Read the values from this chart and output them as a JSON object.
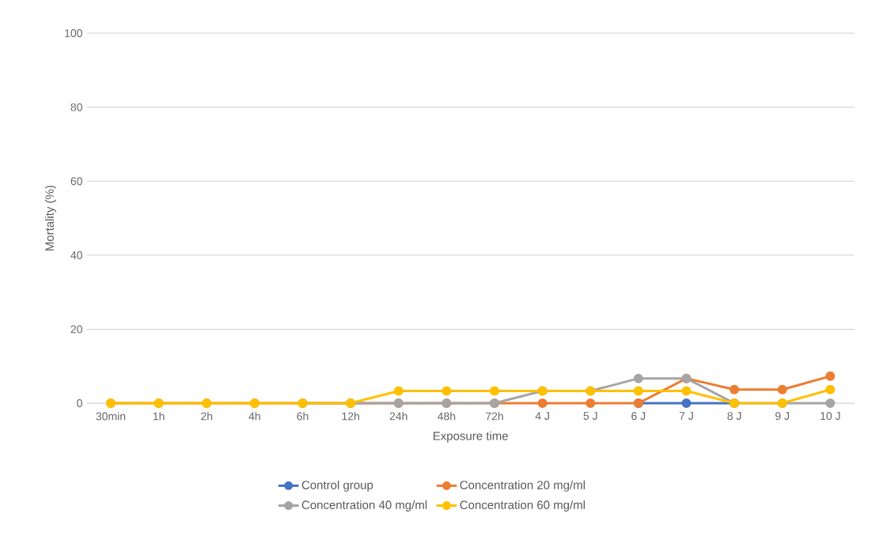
{
  "chart_data": {
    "type": "line",
    "xlabel": "Exposure time",
    "ylabel": "Mortality (%)",
    "categories": [
      "30min",
      "1h",
      "2h",
      "4h",
      "6h",
      "12h",
      "24h",
      "48h",
      "72h",
      "4 J",
      "5 J",
      "6 J",
      "7 J",
      "8 J",
      "9 J",
      "10 J"
    ],
    "series": [
      {
        "name": "Control group",
        "color": "#4472c4",
        "values": [
          null,
          null,
          null,
          null,
          null,
          null,
          null,
          null,
          null,
          null,
          null,
          0,
          0,
          0,
          null,
          null
        ]
      },
      {
        "name": "Concentration 20 mg/ml",
        "color": "#ed7d31",
        "values": [
          0,
          0,
          0,
          0,
          0,
          0,
          0,
          0,
          0,
          0,
          0,
          0,
          6.7,
          3.7,
          3.7,
          7.3
        ]
      },
      {
        "name": "Concentration 40 mg/ml",
        "color": "#a5a5a5",
        "values": [
          null,
          null,
          null,
          null,
          0,
          0,
          0,
          0,
          0,
          3.3,
          3.3,
          6.7,
          6.7,
          0,
          0,
          0
        ]
      },
      {
        "name": "Concentration 60 mg/ml",
        "color": "#ffc000",
        "values": [
          0,
          0,
          0,
          0,
          0,
          0,
          3.3,
          3.3,
          3.3,
          3.3,
          3.3,
          3.3,
          3.3,
          0,
          0,
          3.7
        ]
      }
    ],
    "ylim": [
      0,
      100
    ],
    "yticks": [
      0,
      20,
      40,
      60,
      80,
      100
    ],
    "grid": "y",
    "legend": "bottom",
    "marker": "circle",
    "line_style": "solid"
  }
}
